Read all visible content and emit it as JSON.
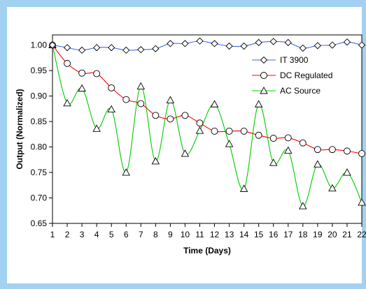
{
  "colors": {
    "outer_background": "#a3d1f2",
    "plot_background": "#ffffff",
    "plot_border": "#000000"
  },
  "chart_data": {
    "type": "line",
    "title": "",
    "xlabel": "Time (Days)",
    "ylabel": "Output (Normalized)",
    "x": [
      1,
      2,
      3,
      4,
      5,
      6,
      7,
      8,
      9,
      10,
      11,
      12,
      13,
      14,
      15,
      16,
      17,
      18,
      19,
      20,
      21,
      22
    ],
    "xlim": [
      1,
      22
    ],
    "ylim": [
      0.65,
      1.02
    ],
    "yticks": [
      0.65,
      0.7,
      0.75,
      0.8,
      0.85,
      0.9,
      0.95,
      1.0
    ],
    "ytick_labels": [
      "0.65",
      "0.70",
      "0.75",
      "0.80",
      "0.85",
      "0.90",
      "0.95",
      "1.00"
    ],
    "xtick_labels": [
      "1",
      "2",
      "3",
      "4",
      "5",
      "6",
      "7",
      "8",
      "9",
      "10",
      "11",
      "12",
      "13",
      "14",
      "15",
      "16",
      "17",
      "18",
      "19",
      "20",
      "21",
      "22"
    ],
    "grid": false,
    "legend_position": "top-right",
    "smooth": true,
    "series": [
      {
        "name": "IT 3900",
        "color": "#4169e1",
        "marker": "diamond",
        "values": [
          1.0,
          0.995,
          0.99,
          0.995,
          0.995,
          0.99,
          0.991,
          0.993,
          1.003,
          1.003,
          1.008,
          1.003,
          0.998,
          0.998,
          1.005,
          1.007,
          1.005,
          0.994,
          0.999,
          1.0,
          1.006,
          1.0
        ]
      },
      {
        "name": "DC Regulated",
        "color": "#ff0000",
        "marker": "circle",
        "values": [
          1.0,
          0.964,
          0.945,
          0.944,
          0.916,
          0.893,
          0.885,
          0.862,
          0.855,
          0.862,
          0.847,
          0.831,
          0.831,
          0.831,
          0.823,
          0.817,
          0.818,
          0.808,
          0.795,
          0.795,
          0.792,
          0.787
        ]
      },
      {
        "name": "AC Source",
        "color": "#00cc00",
        "marker": "triangle",
        "values": [
          1.0,
          0.886,
          0.915,
          0.836,
          0.874,
          0.75,
          0.919,
          0.772,
          0.892,
          0.787,
          0.832,
          0.884,
          0.806,
          0.718,
          0.884,
          0.769,
          0.793,
          0.684,
          0.766,
          0.719,
          0.75,
          0.691
        ]
      }
    ]
  }
}
